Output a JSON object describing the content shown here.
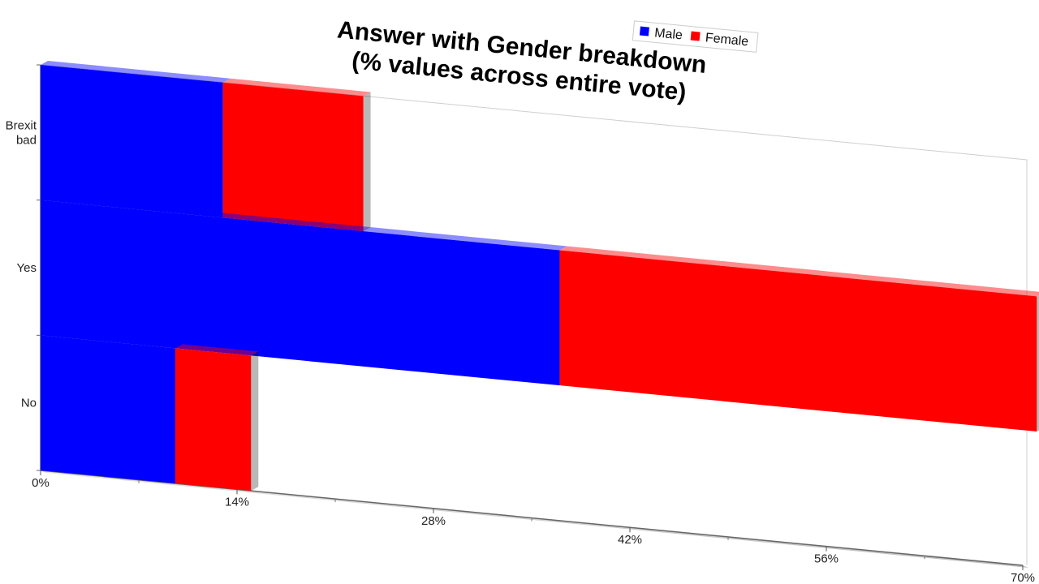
{
  "chart_data": {
    "type": "bar",
    "orientation": "horizontal",
    "stacked": true,
    "three_d": true,
    "title_lines": [
      "Answer with Gender breakdown",
      "(% values across entire vote)"
    ],
    "categories": [
      "Brexit bad",
      "Yes",
      "No"
    ],
    "category_label_lines": [
      [
        "Brexit",
        "bad"
      ],
      [
        "Yes"
      ],
      [
        "No"
      ]
    ],
    "series": [
      {
        "name": "Male",
        "color": "#0000ff",
        "values": [
          13,
          37,
          9.6
        ]
      },
      {
        "name": "Female",
        "color": "#ff0000",
        "values": [
          10,
          34,
          5.4
        ]
      }
    ],
    "xlim": [
      0,
      70
    ],
    "x_ticks": [
      0,
      14,
      28,
      42,
      56,
      70
    ],
    "x_tick_labels": [
      "0%",
      "14%",
      "28%",
      "42%",
      "56%",
      "70%"
    ],
    "xlabel": "",
    "ylabel": "",
    "legend_position": "top-right",
    "grid": false
  }
}
